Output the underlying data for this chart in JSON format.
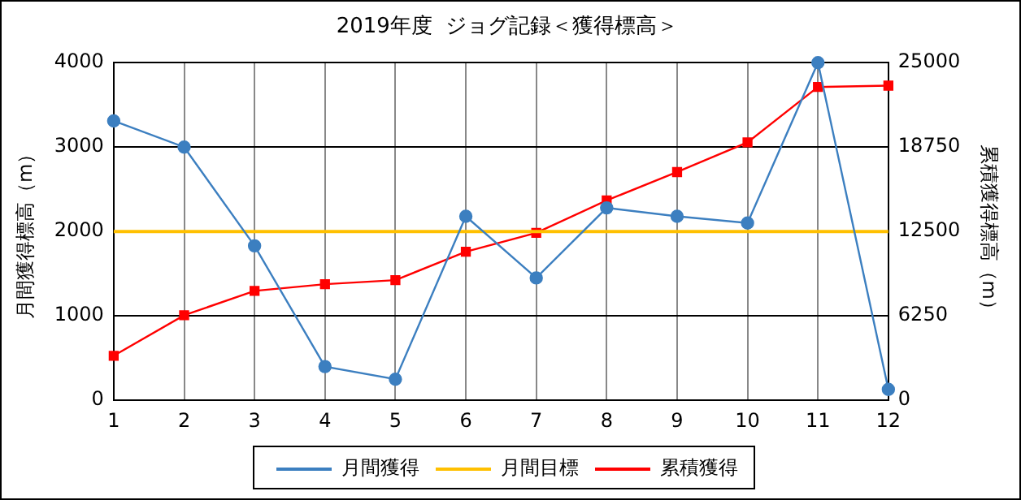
{
  "chart_data": {
    "type": "line",
    "title": "2019年度  ジョグ記録＜獲得標高＞",
    "ylabel": "月間獲得標高（m）",
    "y2label": "累積獲得標高（m）",
    "x": [
      1,
      2,
      3,
      4,
      5,
      6,
      7,
      8,
      9,
      10,
      11,
      12
    ],
    "xlim": [
      1,
      12
    ],
    "xticks": [
      1,
      2,
      3,
      4,
      5,
      6,
      7,
      8,
      9,
      10,
      11,
      12
    ],
    "series": [
      {
        "name": "月間獲得",
        "color": "#3c7fc0",
        "marker": "circle",
        "values": [
          3310,
          3000,
          1830,
          400,
          250,
          2180,
          1450,
          2280,
          2180,
          2100,
          4000,
          130
        ]
      },
      {
        "name": "月間目標",
        "color": "#ffc000",
        "marker": "none",
        "values": [
          2000,
          2000,
          2000,
          2000,
          2000,
          2000,
          2000,
          2000,
          2000,
          2000,
          2000,
          2000
        ]
      },
      {
        "name": "累積獲得",
        "color": "#ff0000",
        "marker": "square",
        "axis": "y2",
        "values": [
          3300,
          6300,
          8100,
          8600,
          8900,
          11000,
          12400,
          14800,
          16900,
          19100,
          23200,
          23300
        ]
      }
    ],
    "ylim": [
      0,
      4000
    ],
    "yticks": [
      0,
      1000,
      2000,
      3000,
      4000
    ],
    "y2lim": [
      0,
      25000
    ],
    "y2ticks": [
      0,
      6250,
      12500,
      18750,
      25000
    ],
    "grid": true,
    "legend": "bottom"
  }
}
